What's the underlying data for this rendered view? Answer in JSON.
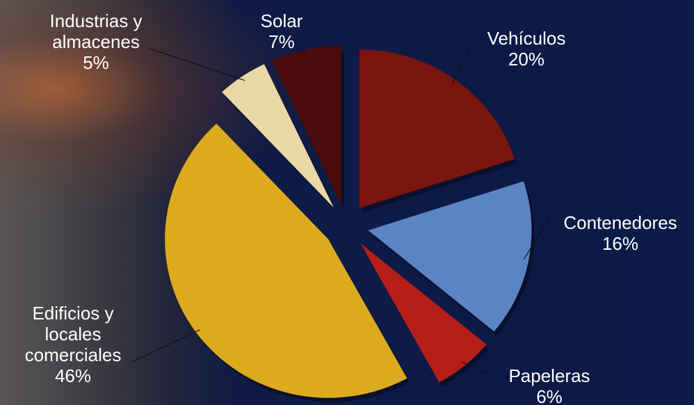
{
  "chart_data": {
    "type": "pie",
    "categories": [
      "Vehículos",
      "Contenedores",
      "Papeleras",
      "Edificios y locales comerciales",
      "Industrias y almacenes",
      "Solar"
    ],
    "values": [
      20,
      16,
      6,
      46,
      5,
      7
    ],
    "value_labels": [
      "20%",
      "16%",
      "6%",
      "46%",
      "5%",
      "7%"
    ],
    "colors": [
      "#7a1510",
      "#5b84c4",
      "#b81e18",
      "#dcaa1f",
      "#e9d7a6",
      "#4a0c0c"
    ]
  }
}
